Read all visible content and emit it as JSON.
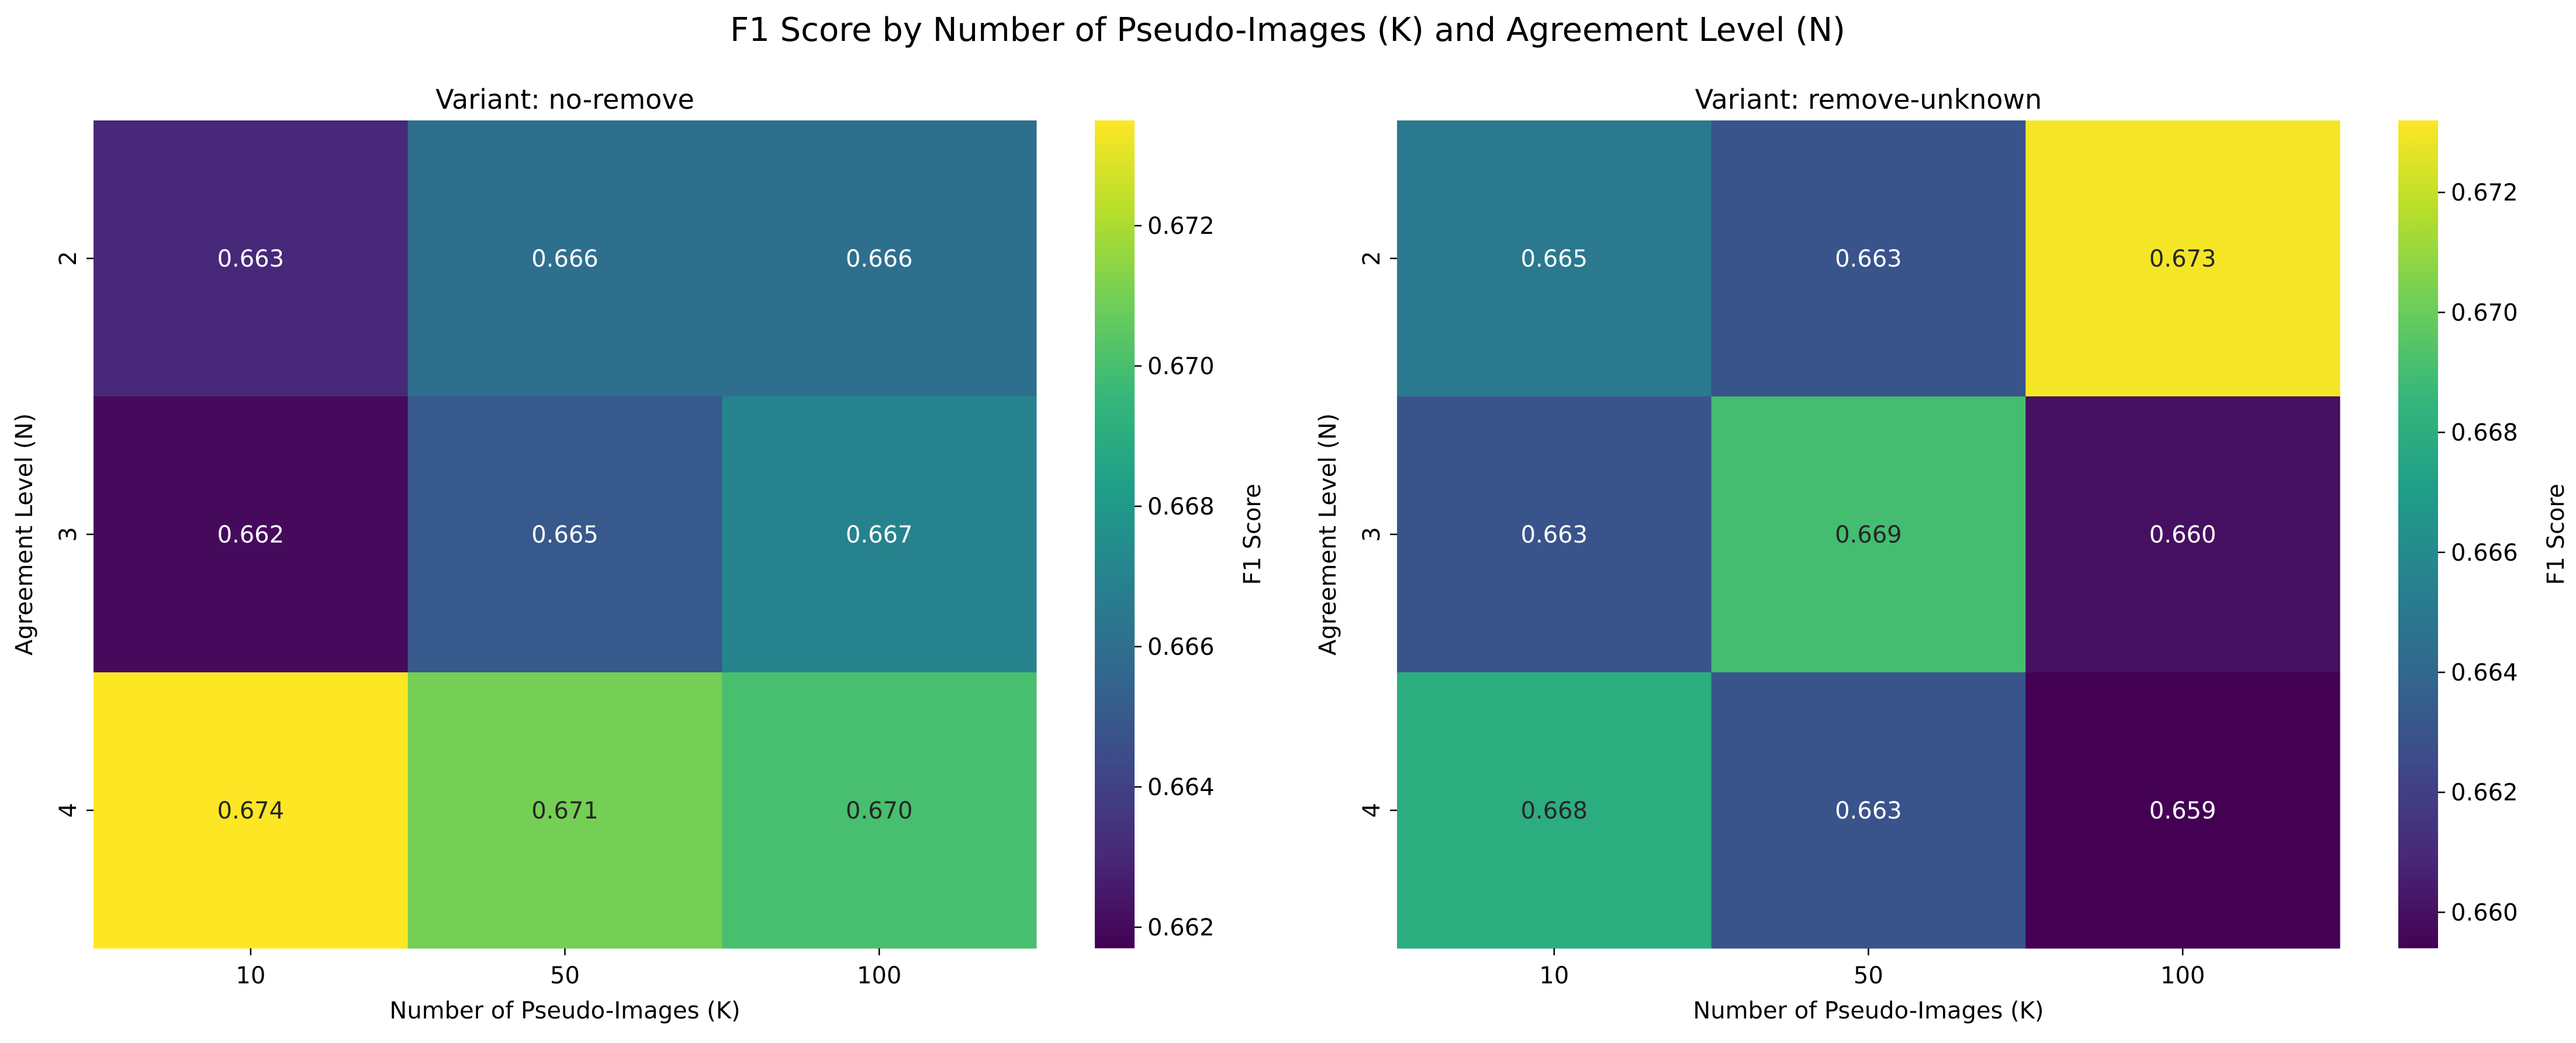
{
  "title": "F1 Score by Number of Pseudo-Images (K) and Agreement Level (N)",
  "colormap": {
    "name": "viridis",
    "stops": [
      "#440154",
      "#482878",
      "#3e4989",
      "#31688e",
      "#26828e",
      "#1f9e89",
      "#35b779",
      "#6ece58",
      "#b5de2b",
      "#fde725"
    ]
  },
  "chart_data": [
    {
      "type": "heatmap",
      "title": "Variant: no-remove",
      "xlabel": "Number of Pseudo-Images (K)",
      "ylabel": "Agreement Level (N)",
      "x": [
        "10",
        "50",
        "100"
      ],
      "y": [
        "2",
        "3",
        "4"
      ],
      "values": [
        [
          0.663,
          0.666,
          0.666
        ],
        [
          0.662,
          0.665,
          0.667
        ],
        [
          0.674,
          0.671,
          0.67
        ]
      ],
      "value_labels": [
        [
          "0.663",
          "0.666",
          "0.666"
        ],
        [
          "0.662",
          "0.665",
          "0.667"
        ],
        [
          "0.674",
          "0.671",
          "0.670"
        ]
      ],
      "colorbar": {
        "label": "F1 Score",
        "range": [
          0.6617,
          0.6735
        ],
        "ticks": [
          0.662,
          0.664,
          0.666,
          0.668,
          0.67,
          0.672
        ],
        "tick_labels": [
          "0.662",
          "0.664",
          "0.666",
          "0.668",
          "0.670",
          "0.672"
        ]
      }
    },
    {
      "type": "heatmap",
      "title": "Variant: remove-unknown",
      "xlabel": "Number of Pseudo-Images (K)",
      "ylabel": "Agreement Level (N)",
      "x": [
        "10",
        "50",
        "100"
      ],
      "y": [
        "2",
        "3",
        "4"
      ],
      "values": [
        [
          0.665,
          0.663,
          0.673
        ],
        [
          0.663,
          0.669,
          0.66
        ],
        [
          0.668,
          0.663,
          0.659
        ]
      ],
      "value_labels": [
        [
          "0.665",
          "0.663",
          "0.673"
        ],
        [
          "0.663",
          "0.669",
          "0.660"
        ],
        [
          "0.668",
          "0.663",
          "0.659"
        ]
      ],
      "colorbar": {
        "label": "F1 Score",
        "range": [
          0.6594,
          0.6732
        ],
        "ticks": [
          0.66,
          0.662,
          0.664,
          0.666,
          0.668,
          0.67,
          0.672
        ],
        "tick_labels": [
          "0.660",
          "0.662",
          "0.664",
          "0.666",
          "0.668",
          "0.670",
          "0.672"
        ]
      }
    }
  ]
}
